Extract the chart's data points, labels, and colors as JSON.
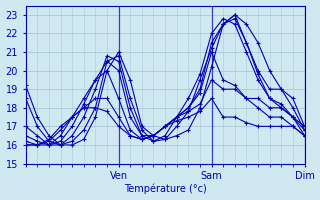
{
  "bg_color": "#d0e8f0",
  "grid_color": "#a8c8d8",
  "line_color": "#0000bb",
  "xlabel": "Température (°c)",
  "ylim": [
    15,
    23.5
  ],
  "yticks": [
    15,
    16,
    17,
    18,
    19,
    20,
    21,
    22,
    23
  ],
  "xlim_hours": 72,
  "xtick_hours": [
    0,
    24,
    48,
    72
  ],
  "xtick_labels": [
    "",
    "Ven",
    "Sam",
    "Dim"
  ],
  "series": [
    {
      "pts": [
        [
          0,
          19.2
        ],
        [
          3,
          17.5
        ],
        [
          6,
          16.5
        ],
        [
          9,
          16.0
        ],
        [
          12,
          16.0
        ],
        [
          15,
          16.3
        ],
        [
          18,
          17.5
        ],
        [
          21,
          20.0
        ],
        [
          24,
          21.0
        ],
        [
          27,
          19.5
        ],
        [
          30,
          17.0
        ],
        [
          33,
          16.5
        ],
        [
          36,
          16.3
        ],
        [
          39,
          16.5
        ],
        [
          42,
          16.8
        ],
        [
          45,
          18.0
        ],
        [
          48,
          20.2
        ],
        [
          51,
          22.5
        ],
        [
          54,
          23.0
        ],
        [
          57,
          22.5
        ],
        [
          60,
          21.5
        ],
        [
          63,
          20.0
        ],
        [
          66,
          19.0
        ],
        [
          69,
          18.0
        ],
        [
          72,
          16.8
        ]
      ]
    },
    {
      "pts": [
        [
          0,
          18.5
        ],
        [
          3,
          17.0
        ],
        [
          6,
          16.2
        ],
        [
          9,
          16.0
        ],
        [
          12,
          16.2
        ],
        [
          15,
          16.8
        ],
        [
          18,
          18.0
        ],
        [
          21,
          20.5
        ],
        [
          24,
          20.8
        ],
        [
          27,
          18.5
        ],
        [
          30,
          16.8
        ],
        [
          33,
          16.2
        ],
        [
          36,
          16.3
        ],
        [
          39,
          17.0
        ],
        [
          42,
          17.8
        ],
        [
          45,
          19.5
        ],
        [
          48,
          21.2
        ],
        [
          51,
          22.5
        ],
        [
          54,
          22.8
        ],
        [
          57,
          21.5
        ],
        [
          60,
          19.8
        ],
        [
          63,
          18.5
        ],
        [
          66,
          18.0
        ],
        [
          69,
          17.5
        ],
        [
          72,
          16.8
        ]
      ]
    },
    {
      "pts": [
        [
          0,
          17.0
        ],
        [
          3,
          16.5
        ],
        [
          6,
          16.0
        ],
        [
          9,
          16.0
        ],
        [
          12,
          16.5
        ],
        [
          15,
          17.5
        ],
        [
          18,
          19.0
        ],
        [
          21,
          20.8
        ],
        [
          24,
          20.5
        ],
        [
          27,
          18.0
        ],
        [
          30,
          16.5
        ],
        [
          33,
          16.2
        ],
        [
          36,
          16.5
        ],
        [
          39,
          17.5
        ],
        [
          42,
          18.5
        ],
        [
          45,
          19.8
        ],
        [
          48,
          22.0
        ],
        [
          51,
          22.8
        ],
        [
          54,
          22.5
        ],
        [
          57,
          21.0
        ],
        [
          60,
          19.5
        ],
        [
          63,
          18.5
        ],
        [
          66,
          18.2
        ],
        [
          69,
          17.5
        ],
        [
          72,
          17.0
        ]
      ]
    },
    {
      "pts": [
        [
          0,
          16.5
        ],
        [
          3,
          16.2
        ],
        [
          6,
          16.0
        ],
        [
          9,
          16.2
        ],
        [
          12,
          17.0
        ],
        [
          15,
          18.2
        ],
        [
          18,
          19.5
        ],
        [
          21,
          20.5
        ],
        [
          24,
          20.0
        ],
        [
          27,
          17.5
        ],
        [
          30,
          16.5
        ],
        [
          33,
          16.5
        ],
        [
          36,
          17.0
        ],
        [
          39,
          17.5
        ],
        [
          42,
          18.0
        ],
        [
          45,
          19.0
        ],
        [
          48,
          21.5
        ],
        [
          51,
          22.5
        ],
        [
          54,
          23.0
        ],
        [
          57,
          21.5
        ],
        [
          60,
          20.0
        ],
        [
          63,
          19.0
        ],
        [
          66,
          19.0
        ],
        [
          69,
          18.5
        ],
        [
          72,
          17.0
        ]
      ]
    },
    {
      "pts": [
        [
          0,
          16.2
        ],
        [
          3,
          16.0
        ],
        [
          6,
          16.0
        ],
        [
          9,
          16.5
        ],
        [
          12,
          17.5
        ],
        [
          15,
          18.5
        ],
        [
          18,
          19.5
        ],
        [
          21,
          20.0
        ],
        [
          24,
          18.5
        ],
        [
          27,
          16.8
        ],
        [
          30,
          16.3
        ],
        [
          33,
          16.5
        ],
        [
          36,
          17.0
        ],
        [
          39,
          17.5
        ],
        [
          42,
          18.0
        ],
        [
          45,
          18.8
        ],
        [
          48,
          21.0
        ],
        [
          51,
          19.5
        ],
        [
          54,
          19.2
        ],
        [
          57,
          18.5
        ],
        [
          60,
          18.5
        ],
        [
          63,
          18.0
        ],
        [
          66,
          18.0
        ],
        [
          69,
          17.5
        ],
        [
          72,
          16.5
        ]
      ]
    },
    {
      "pts": [
        [
          0,
          16.0
        ],
        [
          3,
          16.0
        ],
        [
          6,
          16.2
        ],
        [
          9,
          16.8
        ],
        [
          12,
          17.5
        ],
        [
          15,
          18.0
        ],
        [
          18,
          18.5
        ],
        [
          21,
          18.5
        ],
        [
          24,
          17.5
        ],
        [
          27,
          16.5
        ],
        [
          30,
          16.3
        ],
        [
          33,
          16.5
        ],
        [
          36,
          17.0
        ],
        [
          39,
          17.5
        ],
        [
          42,
          17.8
        ],
        [
          45,
          18.2
        ],
        [
          48,
          19.5
        ],
        [
          51,
          19.0
        ],
        [
          54,
          19.0
        ],
        [
          57,
          18.5
        ],
        [
          60,
          18.0
        ],
        [
          63,
          17.5
        ],
        [
          66,
          17.5
        ],
        [
          69,
          17.0
        ],
        [
          72,
          16.5
        ]
      ]
    },
    {
      "pts": [
        [
          0,
          16.0
        ],
        [
          3,
          16.0
        ],
        [
          6,
          16.3
        ],
        [
          9,
          17.0
        ],
        [
          12,
          17.5
        ],
        [
          15,
          18.0
        ],
        [
          18,
          18.0
        ],
        [
          21,
          17.8
        ],
        [
          24,
          17.0
        ],
        [
          27,
          16.5
        ],
        [
          30,
          16.3
        ],
        [
          33,
          16.5
        ],
        [
          36,
          17.0
        ],
        [
          39,
          17.3
        ],
        [
          42,
          17.5
        ],
        [
          45,
          17.8
        ],
        [
          48,
          18.5
        ],
        [
          51,
          17.5
        ],
        [
          54,
          17.5
        ],
        [
          57,
          17.2
        ],
        [
          60,
          17.0
        ],
        [
          63,
          17.0
        ],
        [
          66,
          17.0
        ],
        [
          69,
          17.0
        ],
        [
          72,
          16.5
        ]
      ]
    }
  ]
}
